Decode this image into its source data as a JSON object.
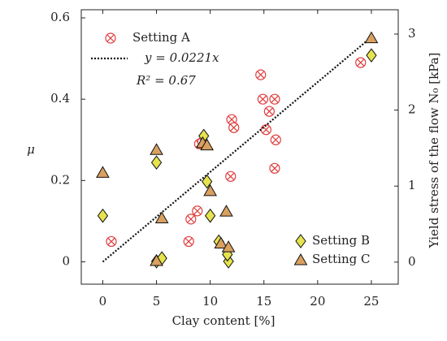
{
  "chart_data": {
    "type": "scatter",
    "xlabel": "Clay content [%]",
    "ylabel": "μ",
    "y2label": "Yield stress of the flow N₀ [kPa]",
    "annotation": "R² = 0.67",
    "xlim": [
      -2,
      27.5
    ],
    "xticks": [
      0,
      5,
      10,
      15,
      20,
      25
    ],
    "ylim": [
      -0.055,
      0.62
    ],
    "yticks": [
      0,
      0.2,
      0.4,
      0.6
    ],
    "y2lim": [
      -0.29,
      3.32
    ],
    "y2ticks": [
      0,
      1,
      2,
      3
    ],
    "series": [
      {
        "name": "Setting A",
        "color": "#e03c3c",
        "marker": "circle-x",
        "axis": "y",
        "x": [
          0.8,
          8,
          8.2,
          8.8,
          9,
          9.3,
          11.9,
          12,
          12.2,
          14.7,
          14.9,
          15.2,
          15.5,
          16,
          16.1,
          16,
          24
        ],
        "values": [
          0.05,
          0.05,
          0.105,
          0.125,
          0.29,
          0.295,
          0.21,
          0.35,
          0.33,
          0.46,
          0.4,
          0.325,
          0.37,
          0.4,
          0.3,
          0.23,
          0.49
        ]
      },
      {
        "name": "y = 0.0221x",
        "color": "#111111",
        "marker": "dotted-line",
        "axis": "y",
        "x": [
          0,
          25
        ],
        "values": [
          0,
          0.5525
        ]
      },
      {
        "name": "Setting B",
        "color": "#e6e34e",
        "marker": "diamond",
        "axis": "y2",
        "x": [
          0,
          5,
          9.4,
          9.7,
          10,
          10.8,
          11.7,
          11.6,
          5,
          5.5,
          25
        ],
        "values": [
          0.61,
          1.31,
          1.66,
          1.06,
          0.61,
          0.27,
          0.01,
          0.1,
          0.01,
          0.05,
          2.72
        ]
      },
      {
        "name": "Setting C",
        "color": "#d9a060",
        "marker": "triangle",
        "axis": "y2",
        "x": [
          0,
          5,
          5.5,
          9.3,
          9.7,
          10,
          11.5,
          11,
          11.7,
          5,
          25
        ],
        "values": [
          1.18,
          1.48,
          0.58,
          1.57,
          1.54,
          0.94,
          0.67,
          0.25,
          0.2,
          0.02,
          2.95
        ]
      }
    ]
  }
}
